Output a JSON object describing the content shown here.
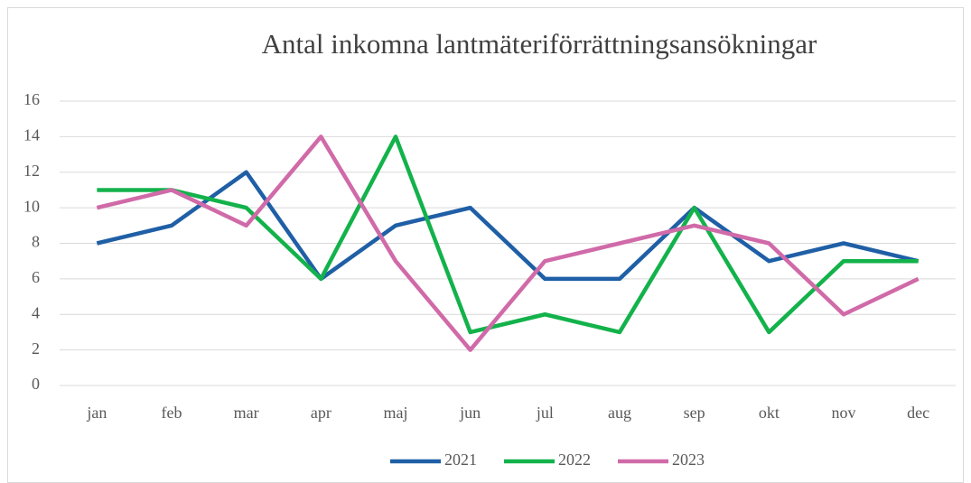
{
  "chart_data": {
    "type": "line",
    "title": "Antal inkomna lantmäteriförrättningsansökningar",
    "categories": [
      "jan",
      "feb",
      "mar",
      "apr",
      "maj",
      "jun",
      "jul",
      "aug",
      "sep",
      "okt",
      "nov",
      "dec"
    ],
    "series": [
      {
        "name": "2021",
        "color": "#1f5fa6",
        "values": [
          8,
          9,
          12,
          6,
          9,
          10,
          6,
          6,
          10,
          7,
          8,
          7
        ]
      },
      {
        "name": "2022",
        "color": "#13b24b",
        "values": [
          11,
          11,
          10,
          6,
          14,
          3,
          4,
          3,
          10,
          3,
          7,
          7
        ]
      },
      {
        "name": "2023",
        "color": "#d06aa8",
        "values": [
          10,
          11,
          9,
          14,
          7,
          2,
          7,
          8,
          9,
          8,
          4,
          6
        ]
      }
    ],
    "ylim": [
      0,
      16
    ],
    "yticks": [
      0,
      2,
      4,
      6,
      8,
      10,
      12,
      14,
      16
    ],
    "grid": true,
    "legend": "bottom"
  }
}
